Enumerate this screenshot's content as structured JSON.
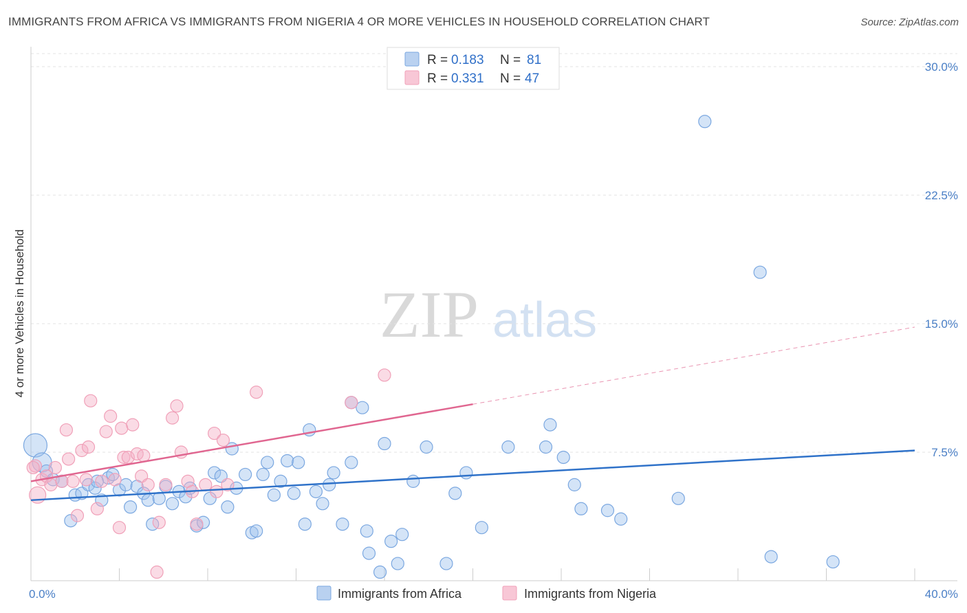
{
  "title": "IMMIGRANTS FROM AFRICA VS IMMIGRANTS FROM NIGERIA 4 OR MORE VEHICLES IN HOUSEHOLD CORRELATION CHART",
  "source": "Source: ZipAtlas.com",
  "watermark": {
    "zip": "ZIP",
    "atlas": "atlas"
  },
  "colors": {
    "africa": "#7aa7e0",
    "africa_line": "#2f72c9",
    "nigeria": "#f0a0b8",
    "nigeria_line": "#e06690",
    "tick": "#4a7fc6"
  },
  "chart_data": {
    "type": "scatter",
    "xlabel": "",
    "ylabel": "4 or more Vehicles in Household",
    "xlim": [
      0,
      40
    ],
    "ylim": [
      0,
      31.0
    ],
    "x_tick_labels": [
      {
        "value": 0,
        "label": "0.0%"
      },
      {
        "value": 40,
        "label": "40.0%"
      }
    ],
    "y_tick_labels": [
      {
        "value": 7.5,
        "label": "7.5%"
      },
      {
        "value": 15,
        "label": "15.0%"
      },
      {
        "value": 22.5,
        "label": "22.5%"
      },
      {
        "value": 30,
        "label": "30.0%"
      }
    ],
    "legend": {
      "entries": [
        {
          "r_label": "R =",
          "r_value": "0.183",
          "n_label": "N =",
          "n_value": "81"
        },
        {
          "r_label": "R =",
          "r_value": "0.331",
          "n_label": "N =",
          "n_value": "47"
        }
      ]
    },
    "series": [
      {
        "name": "Immigrants from Africa",
        "trend": {
          "x0": 0,
          "y0": 4.7,
          "x1": 40,
          "y1": 7.6,
          "dashed_from": null
        },
        "points": [
          [
            0.2,
            7.9
          ],
          [
            0.5,
            6.9
          ],
          [
            0.7,
            6.4
          ],
          [
            1.0,
            5.9
          ],
          [
            1.4,
            5.8
          ],
          [
            1.8,
            3.5
          ],
          [
            2.0,
            5.0
          ],
          [
            2.3,
            5.1
          ],
          [
            2.6,
            5.6
          ],
          [
            2.9,
            5.4
          ],
          [
            3.2,
            4.7
          ],
          [
            3.5,
            6.0
          ],
          [
            3.7,
            6.2
          ],
          [
            4.0,
            5.3
          ],
          [
            4.3,
            5.6
          ],
          [
            4.5,
            4.3
          ],
          [
            4.8,
            5.5
          ],
          [
            5.1,
            5.1
          ],
          [
            5.3,
            4.7
          ],
          [
            5.5,
            3.3
          ],
          [
            5.8,
            4.8
          ],
          [
            6.1,
            5.5
          ],
          [
            6.4,
            4.5
          ],
          [
            6.7,
            5.2
          ],
          [
            7.0,
            4.9
          ],
          [
            7.2,
            5.4
          ],
          [
            7.5,
            3.2
          ],
          [
            7.8,
            3.4
          ],
          [
            8.1,
            4.8
          ],
          [
            8.3,
            6.3
          ],
          [
            8.6,
            6.1
          ],
          [
            8.9,
            4.3
          ],
          [
            9.1,
            7.7
          ],
          [
            9.3,
            5.4
          ],
          [
            9.7,
            6.2
          ],
          [
            10.0,
            2.8
          ],
          [
            10.2,
            2.9
          ],
          [
            10.5,
            6.2
          ],
          [
            10.7,
            6.9
          ],
          [
            11.0,
            5.0
          ],
          [
            11.3,
            5.8
          ],
          [
            11.6,
            7.0
          ],
          [
            11.9,
            5.1
          ],
          [
            12.1,
            6.9
          ],
          [
            12.4,
            3.3
          ],
          [
            12.6,
            8.8
          ],
          [
            12.9,
            5.2
          ],
          [
            13.2,
            4.5
          ],
          [
            13.5,
            5.6
          ],
          [
            13.7,
            6.3
          ],
          [
            14.1,
            3.3
          ],
          [
            14.5,
            6.9
          ],
          [
            14.5,
            10.4
          ],
          [
            15.0,
            10.1
          ],
          [
            15.2,
            2.9
          ],
          [
            15.3,
            1.6
          ],
          [
            15.8,
            0.5
          ],
          [
            16.0,
            8.0
          ],
          [
            16.3,
            2.3
          ],
          [
            16.6,
            1.0
          ],
          [
            16.8,
            2.7
          ],
          [
            17.3,
            5.8
          ],
          [
            17.9,
            7.8
          ],
          [
            18.8,
            1.0
          ],
          [
            19.2,
            5.1
          ],
          [
            19.7,
            6.3
          ],
          [
            20.4,
            3.1
          ],
          [
            21.6,
            7.8
          ],
          [
            23.3,
            7.8
          ],
          [
            23.5,
            9.1
          ],
          [
            24.1,
            7.2
          ],
          [
            24.6,
            5.6
          ],
          [
            24.9,
            4.2
          ],
          [
            26.1,
            4.1
          ],
          [
            26.7,
            3.6
          ],
          [
            29.3,
            4.8
          ],
          [
            30.5,
            26.8
          ],
          [
            33.0,
            18.0
          ],
          [
            33.5,
            1.4
          ],
          [
            36.3,
            1.1
          ],
          [
            3.0,
            5.8
          ]
        ]
      },
      {
        "name": "Immigrants from Nigeria",
        "trend": {
          "x0": 0,
          "y0": 5.8,
          "x1": 40,
          "y1": 14.8,
          "dashed_from": 20
        },
        "points": [
          [
            0.2,
            6.7
          ],
          [
            0.3,
            5.0
          ],
          [
            0.5,
            5.9
          ],
          [
            0.7,
            6.1
          ],
          [
            0.9,
            5.6
          ],
          [
            1.1,
            6.6
          ],
          [
            1.4,
            5.8
          ],
          [
            1.6,
            8.8
          ],
          [
            1.7,
            7.1
          ],
          [
            1.9,
            5.8
          ],
          [
            2.1,
            3.8
          ],
          [
            2.3,
            7.6
          ],
          [
            2.5,
            5.9
          ],
          [
            2.6,
            7.8
          ],
          [
            2.7,
            10.5
          ],
          [
            3.0,
            4.2
          ],
          [
            3.2,
            5.8
          ],
          [
            3.4,
            8.7
          ],
          [
            3.6,
            9.6
          ],
          [
            3.8,
            5.9
          ],
          [
            4.0,
            3.1
          ],
          [
            4.1,
            8.9
          ],
          [
            4.2,
            7.2
          ],
          [
            4.4,
            7.2
          ],
          [
            4.6,
            9.1
          ],
          [
            4.8,
            7.4
          ],
          [
            5.0,
            6.1
          ],
          [
            5.1,
            7.3
          ],
          [
            5.3,
            5.6
          ],
          [
            5.7,
            0.5
          ],
          [
            5.8,
            3.4
          ],
          [
            6.1,
            5.6
          ],
          [
            6.4,
            9.5
          ],
          [
            6.6,
            10.2
          ],
          [
            6.8,
            7.5
          ],
          [
            7.1,
            5.8
          ],
          [
            7.3,
            5.2
          ],
          [
            7.5,
            3.3
          ],
          [
            7.9,
            5.6
          ],
          [
            8.3,
            8.6
          ],
          [
            8.4,
            5.2
          ],
          [
            8.7,
            8.2
          ],
          [
            8.9,
            5.6
          ],
          [
            10.2,
            11.0
          ],
          [
            14.5,
            10.4
          ],
          [
            16.0,
            12.0
          ],
          [
            0.1,
            6.6
          ]
        ]
      }
    ]
  },
  "bottom_legend": [
    {
      "label": "Immigrants from Africa"
    },
    {
      "label": "Immigrants from Nigeria"
    }
  ]
}
